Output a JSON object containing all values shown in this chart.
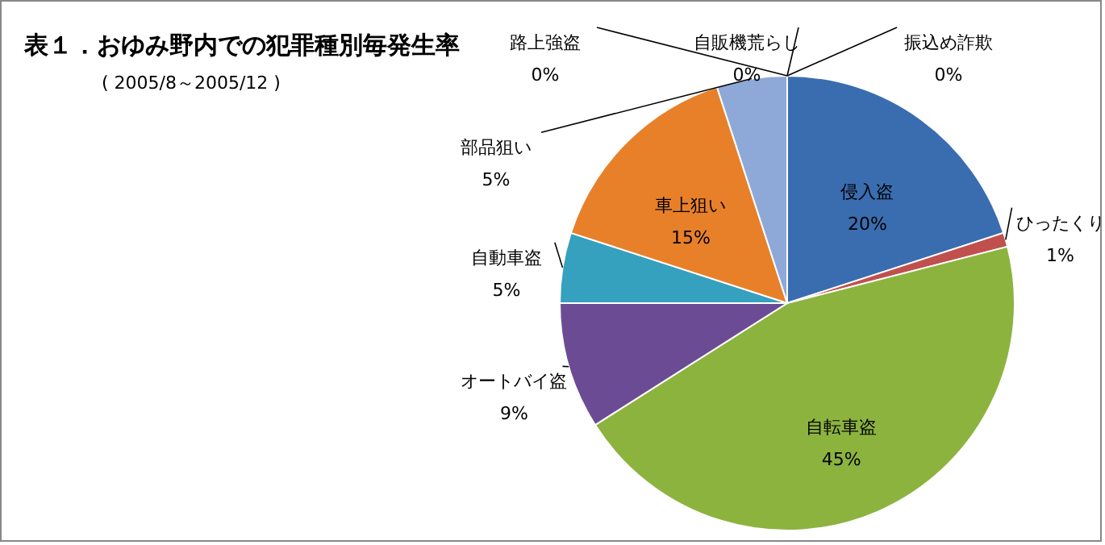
{
  "chart_data": {
    "type": "pie",
    "title": "表１．おゆみ野内での犯罪種別毎発生率",
    "subtitle": "( 2005/8～2005/12 )",
    "categories": [
      "侵入盗",
      "ひったくり",
      "自転車盗",
      "オートバイ盗",
      "自動車盗",
      "車上狙い",
      "部品狙い",
      "路上強盗",
      "自販機荒らし",
      "振込め詐欺"
    ],
    "values": [
      20,
      1,
      45,
      9,
      5,
      15,
      5,
      0,
      0,
      0
    ],
    "value_labels": [
      "20%",
      "1%",
      "45%",
      "9%",
      "5%",
      "15%",
      "5%",
      "0%",
      "0%",
      "0%"
    ],
    "colors": [
      "#3a6db0",
      "#c0504d",
      "#8db33f",
      "#6b4c94",
      "#36a0bf",
      "#e8802a",
      "#8ea9d8",
      "#b9c99a",
      "#c9a4a3",
      "#a6b8dc"
    ]
  }
}
